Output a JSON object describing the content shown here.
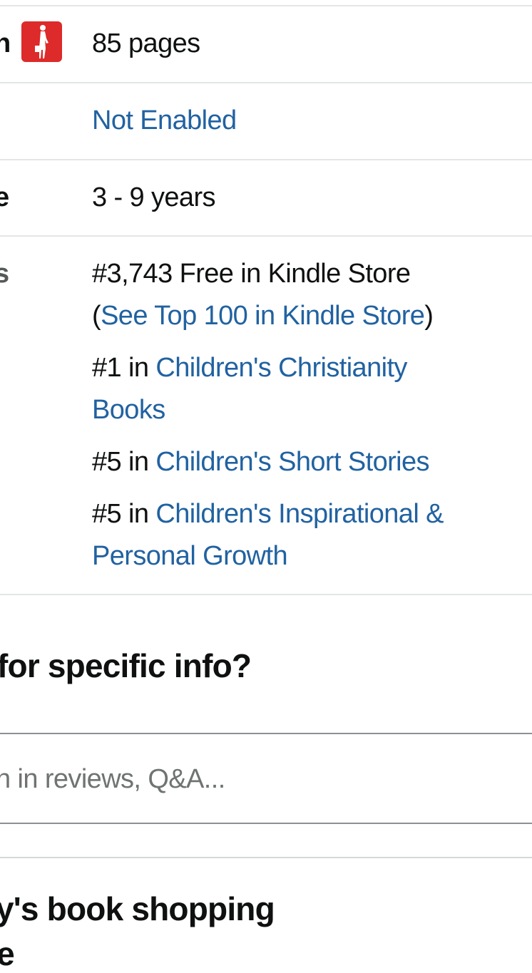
{
  "details": {
    "rows": [
      {
        "label": "h",
        "value": "85 pages",
        "icon": "reading-woman-icon"
      },
      {
        "label": "",
        "value": "Not Enabled"
      },
      {
        "label": "e",
        "value": "3 - 9 years"
      }
    ],
    "best_sellers": {
      "label": "s",
      "overall": {
        "prefix": "#3,743 Free in Kindle Store",
        "open_paren": "(",
        "link": "See Top 100 in Kindle Store",
        "close_paren": ")"
      },
      "ranks": [
        {
          "rank": "#1 in ",
          "link_line1": "Children's Christianity",
          "link_line2": "Books"
        },
        {
          "rank": "#5 in ",
          "link_line1": "Children's Short Stories"
        },
        {
          "rank": "#5 in ",
          "link_line1": "Children's Inspirational &",
          "link_line2": "Personal Growth"
        }
      ]
    }
  },
  "search_section": {
    "heading": "for specific info?",
    "placeholder": "n in reviews, Q&A..."
  },
  "bottom_section": {
    "heading_line1": "y's book shopping",
    "heading_line2": "re"
  },
  "colors": {
    "link": "#2162a1",
    "badge": "#dd2a2a"
  }
}
